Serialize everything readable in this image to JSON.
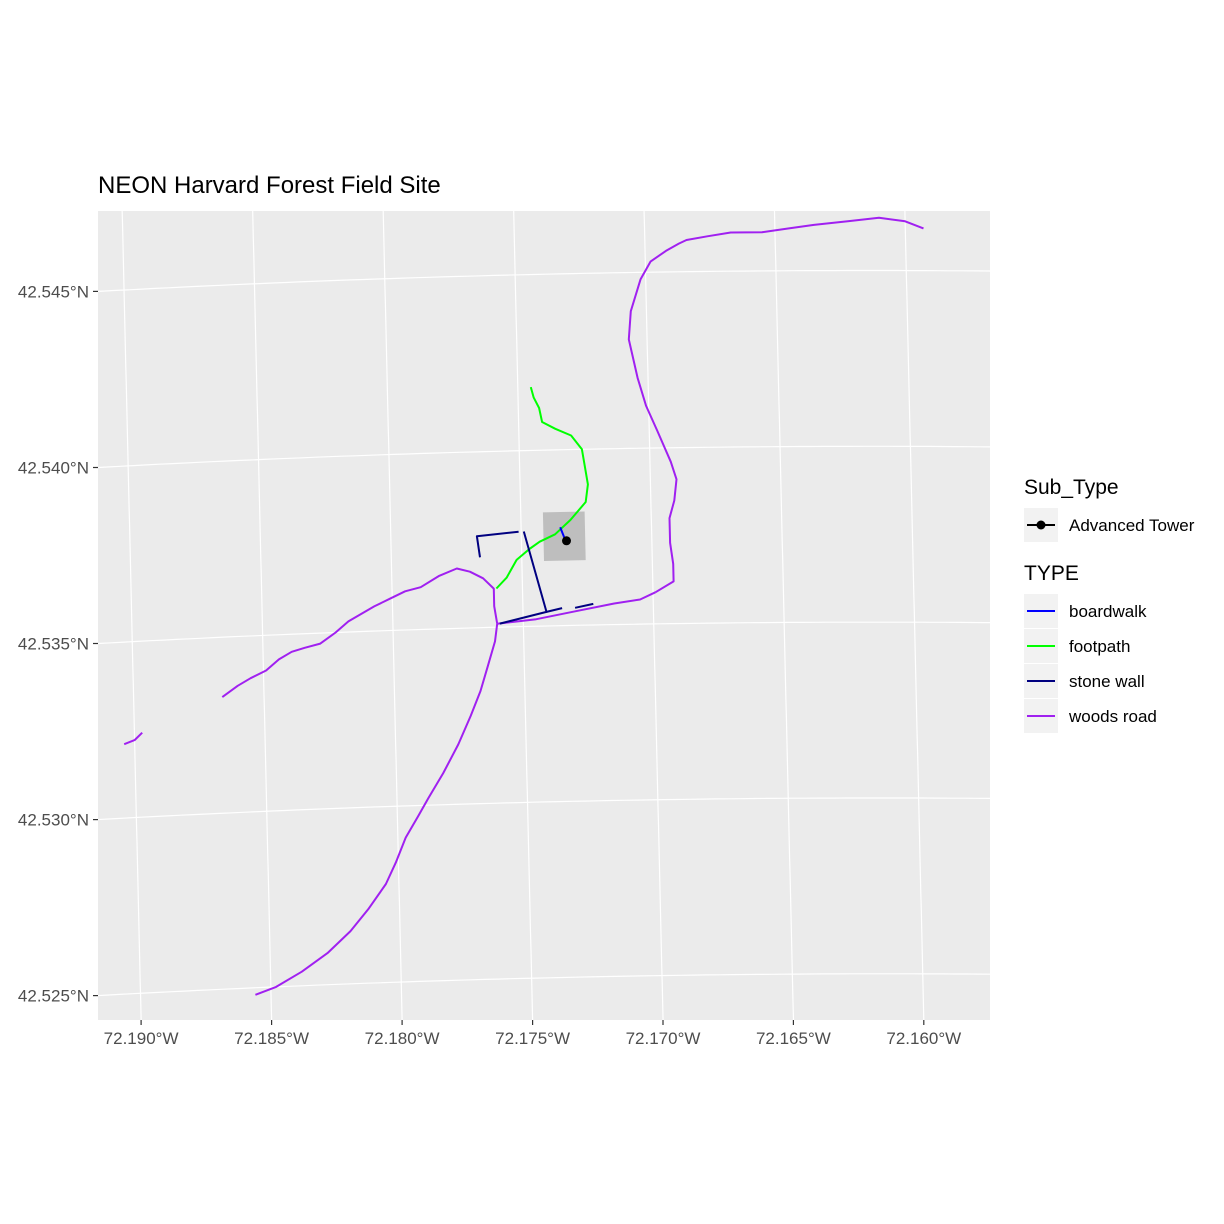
{
  "chart_data": {
    "type": "map",
    "title": "NEON Harvard Forest Field Site",
    "x_ticks": [
      {
        "value": -72.19,
        "label": "72.190°W"
      },
      {
        "value": -72.185,
        "label": "72.185°W"
      },
      {
        "value": -72.18,
        "label": "72.180°W"
      },
      {
        "value": -72.175,
        "label": "72.175°W"
      },
      {
        "value": -72.17,
        "label": "72.170°W"
      },
      {
        "value": -72.165,
        "label": "72.165°W"
      },
      {
        "value": -72.16,
        "label": "72.160°W"
      }
    ],
    "y_ticks": [
      {
        "value": 42.545,
        "label": "42.545°N"
      },
      {
        "value": 42.54,
        "label": "42.540°N"
      },
      {
        "value": 42.535,
        "label": "42.535°N"
      },
      {
        "value": 42.53,
        "label": "42.530°N"
      },
      {
        "value": 42.525,
        "label": "42.525°N"
      }
    ],
    "xlim": [
      -72.1913,
      -72.1571
    ],
    "ylim": [
      42.5238,
      42.5468
    ],
    "panel_background": "#ebebeb",
    "grid": true,
    "legend_position": "right",
    "legends": [
      {
        "title": "Sub_Type",
        "items": [
          {
            "label": "Advanced Tower",
            "color": "#000000",
            "glyph": "point-line"
          }
        ]
      },
      {
        "title": "TYPE",
        "items": [
          {
            "label": "boardwalk",
            "color": "#0000ff",
            "glyph": "line"
          },
          {
            "label": "footpath",
            "color": "#00ff00",
            "glyph": "line"
          },
          {
            "label": "stone wall",
            "color": "#000080",
            "glyph": "line"
          },
          {
            "label": "woods road",
            "color": "#a020f0",
            "glyph": "line"
          }
        ]
      }
    ],
    "aoi_box": {
      "lon_min": -72.17415,
      "lon_max": -72.17255,
      "lat_min": 42.53685,
      "lat_max": 42.53823,
      "color": "#bebebe"
    },
    "tower": {
      "lon": -72.17327,
      "lat": 42.53741,
      "color": "#000000"
    },
    "features": [
      {
        "type": "woods road",
        "color": "#a020f0",
        "coords": [
          [
            -72.1699,
            42.5359
          ],
          [
            -72.1692,
            42.5362
          ],
          [
            -72.1692,
            42.5367
          ],
          [
            -72.1693,
            42.5373
          ],
          [
            -72.1693,
            42.538
          ],
          [
            -72.1691,
            42.5385
          ],
          [
            -72.169,
            42.5391
          ],
          [
            -72.1692,
            42.5396
          ],
          [
            -72.1697,
            42.5405
          ],
          [
            -72.1701,
            42.5412
          ],
          [
            -72.1704,
            42.542
          ],
          [
            -72.1707,
            42.5431
          ],
          [
            -72.1706,
            42.5439
          ],
          [
            -72.1702,
            42.5448
          ],
          [
            -72.1698,
            42.5453
          ],
          [
            -72.1692,
            42.5456
          ],
          [
            -72.1687,
            42.5458
          ],
          [
            -72.1684,
            42.5459
          ],
          [
            -72.1676,
            42.546
          ],
          [
            -72.1667,
            42.5461
          ],
          [
            -72.1655,
            42.5461
          ],
          [
            -72.1645,
            42.5462
          ],
          [
            -72.1635,
            42.5463
          ],
          [
            -72.1622,
            42.5464
          ],
          [
            -72.161,
            42.5465
          ],
          [
            -72.16,
            42.5464
          ],
          [
            -72.1593,
            42.5462
          ]
        ]
      },
      {
        "type": "woods road",
        "color": "#a020f0",
        "coords": [
          [
            -72.176,
            42.5351
          ],
          [
            -72.1745,
            42.5352
          ],
          [
            -72.173,
            42.5354
          ],
          [
            -72.1715,
            42.5356
          ],
          [
            -72.1705,
            42.5357
          ],
          [
            -72.1699,
            42.5359
          ]
        ]
      },
      {
        "type": "woods road",
        "color": "#a020f0",
        "coords": [
          [
            -72.176,
            42.5351
          ],
          [
            -72.1761,
            42.5356
          ],
          [
            -72.1761,
            42.5361
          ],
          [
            -72.1765,
            42.5364
          ],
          [
            -72.177,
            42.5366
          ],
          [
            -72.1775,
            42.5367
          ],
          [
            -72.1782,
            42.5365
          ],
          [
            -72.1789,
            42.5362
          ],
          [
            -72.1795,
            42.5361
          ],
          [
            -72.1801,
            42.5359
          ],
          [
            -72.1807,
            42.5357
          ],
          [
            -72.1812,
            42.5355
          ],
          [
            -72.1817,
            42.5353
          ],
          [
            -72.1822,
            42.535
          ],
          [
            -72.1828,
            42.5347
          ],
          [
            -72.1834,
            42.5346
          ],
          [
            -72.1839,
            42.5345
          ],
          [
            -72.1844,
            42.5343
          ],
          [
            -72.1849,
            42.534
          ],
          [
            -72.1855,
            42.5338
          ],
          [
            -72.186,
            42.5336
          ],
          [
            -72.1866,
            42.5333
          ]
        ]
      },
      {
        "type": "woods road",
        "color": "#a020f0",
        "coords": [
          [
            -72.176,
            42.5351
          ],
          [
            -72.1761,
            42.5346
          ],
          [
            -72.1764,
            42.5339
          ],
          [
            -72.1767,
            42.5332
          ],
          [
            -72.1771,
            42.5325
          ],
          [
            -72.1776,
            42.5317
          ],
          [
            -72.1782,
            42.5309
          ],
          [
            -72.1788,
            42.5302
          ],
          [
            -72.1792,
            42.5297
          ],
          [
            -72.1797,
            42.5291
          ],
          [
            -72.1801,
            42.5284
          ],
          [
            -72.1805,
            42.5278
          ],
          [
            -72.1812,
            42.5271
          ],
          [
            -72.1819,
            42.5265
          ],
          [
            -72.1828,
            42.5259
          ],
          [
            -72.1838,
            42.5254
          ],
          [
            -72.1848,
            42.525
          ],
          [
            -72.1856,
            42.5248
          ]
        ]
      },
      {
        "type": "woods road",
        "color": "#a020f0",
        "coords": [
          [
            -72.1897,
            42.5324
          ],
          [
            -72.19,
            42.5322
          ],
          [
            -72.1904,
            42.5321
          ]
        ]
      },
      {
        "type": "footpath",
        "color": "#00ff00",
        "coords": [
          [
            -72.176,
            42.5361
          ],
          [
            -72.1756,
            42.5364
          ],
          [
            -72.1752,
            42.5369
          ],
          [
            -72.1747,
            42.5372
          ],
          [
            -72.1743,
            42.5374
          ],
          [
            -72.1737,
            42.5376
          ],
          [
            -72.1731,
            42.538
          ],
          [
            -72.1725,
            42.5385
          ],
          [
            -72.1724,
            42.539
          ],
          [
            -72.1725,
            42.5395
          ],
          [
            -72.1726,
            42.54
          ],
          [
            -72.173,
            42.5404
          ],
          [
            -72.1736,
            42.5406
          ],
          [
            -72.1741,
            42.5408
          ],
          [
            -72.1742,
            42.5412
          ],
          [
            -72.1744,
            42.5415
          ],
          [
            -72.1745,
            42.5418
          ]
        ]
      },
      {
        "type": "stone wall",
        "color": "#000080",
        "coords": [
          [
            -72.1766,
            42.537
          ],
          [
            -72.1767,
            42.5376
          ],
          [
            -72.1751,
            42.5377
          ]
        ]
      },
      {
        "type": "stone wall",
        "color": "#000080",
        "coords": [
          [
            -72.1749,
            42.5377
          ],
          [
            -72.1741,
            42.5354
          ],
          [
            -72.1759,
            42.5351
          ]
        ]
      },
      {
        "type": "stone wall",
        "color": "#000080",
        "coords": [
          [
            -72.1741,
            42.5354
          ],
          [
            -72.1735,
            42.5355
          ]
        ]
      },
      {
        "type": "stone wall",
        "color": "#000080",
        "coords": [
          [
            -72.173,
            42.5355
          ],
          [
            -72.1723,
            42.5356
          ]
        ]
      },
      {
        "type": "boardwalk",
        "color": "#0000ff",
        "coords": [
          [
            -72.1735,
            42.5378
          ],
          [
            -72.1733,
            42.5374
          ]
        ]
      }
    ]
  }
}
